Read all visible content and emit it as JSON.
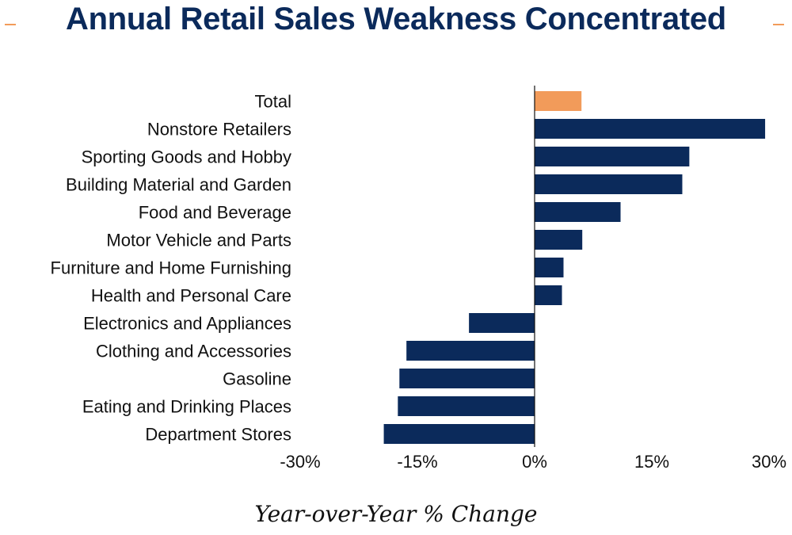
{
  "chart_data": {
    "type": "bar",
    "orientation": "horizontal",
    "title": "Annual Retail Sales Weakness Concentrated",
    "xlabel": "Year-over-Year % Change",
    "ylabel": "",
    "xlim": [
      -30,
      30
    ],
    "xticks": [
      -30,
      -15,
      0,
      15,
      30
    ],
    "xtick_labels": [
      "-30%",
      "-15%",
      "0%",
      "15%",
      "30%"
    ],
    "categories": [
      "Total",
      "Nonstore Retailers",
      "Sporting Goods and Hobby",
      "Building Material and Garden",
      "Food and Beverage",
      "Motor Vehicle and Parts ",
      "Furniture and Home Furnishing",
      "Health and Personal Care",
      "Electronics and Appliances",
      "Clothing and Accessories",
      "Gasoline",
      "Eating and Drinking Places",
      "Department Stores"
    ],
    "values": [
      6.0,
      29.5,
      19.8,
      18.9,
      11.0,
      6.1,
      3.7,
      3.5,
      -8.4,
      -16.4,
      -17.3,
      -17.5,
      -19.3
    ],
    "colors": {
      "highlight": "#f29b5a",
      "bar": "#0b2a5b",
      "axis": "#111111"
    },
    "highlight_index": 0
  }
}
